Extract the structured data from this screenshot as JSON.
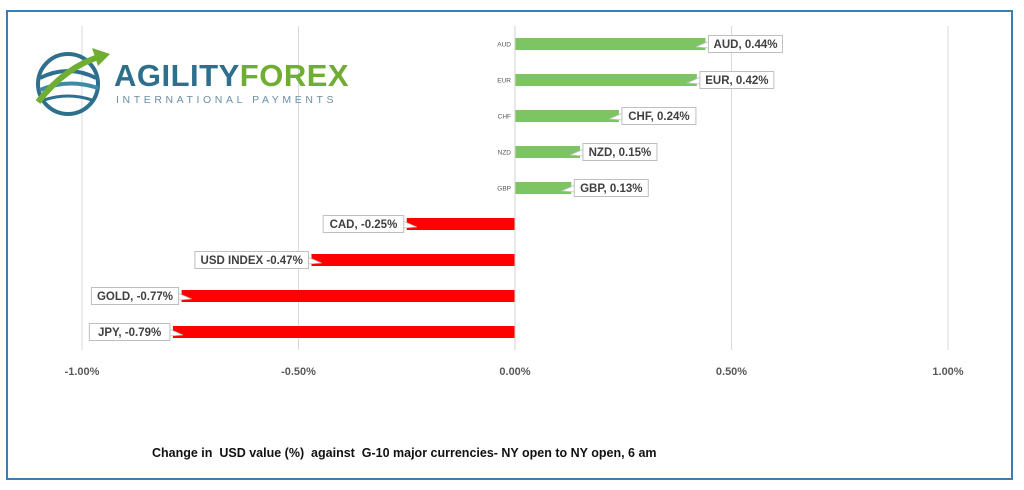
{
  "logo": {
    "brand_part1": "AGILITY",
    "brand_part2": "FOREX",
    "tagline": "INTERNATIONAL PAYMENTS"
  },
  "caption": "Change in  USD value (%)  against  G-10 major currencies- NY open to NY open, 6 am",
  "colors": {
    "positive": "#7dc462",
    "negative": "#ff0000",
    "frame": "#3a7fb0",
    "grid": "#d9d9d9"
  },
  "chart_data": {
    "type": "bar",
    "orientation": "horizontal",
    "categories": [
      "AUD",
      "EUR",
      "CHF",
      "NZD",
      "GBP",
      "CAD",
      "USD INDEX",
      "GOLD",
      "JPY"
    ],
    "values": [
      0.44,
      0.42,
      0.24,
      0.15,
      0.13,
      -0.25,
      -0.47,
      -0.77,
      -0.79
    ],
    "data_labels": [
      "AUD, 0.44%",
      "EUR, 0.42%",
      "CHF, 0.24%",
      "NZD, 0.15%",
      "GBP, 0.13%",
      "CAD, -0.25%",
      "USD INDEX -0.47%",
      "GOLD, -0.77%",
      "JPY, -0.79%"
    ],
    "xlim": [
      -1.0,
      1.0
    ],
    "x_ticks": [
      -1.0,
      -0.5,
      0.0,
      0.5,
      1.0
    ],
    "x_tick_labels": [
      "-1.00%",
      "-0.50%",
      "0.00%",
      "0.50%",
      "1.00%"
    ],
    "grid": true,
    "title": "",
    "xlabel": "",
    "ylabel": ""
  }
}
